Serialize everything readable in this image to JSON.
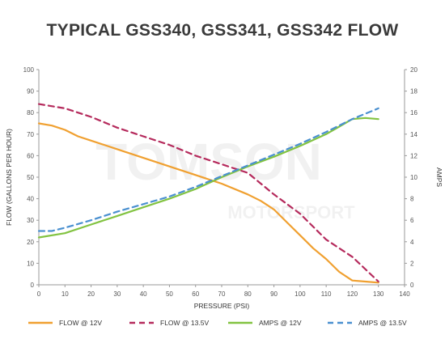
{
  "chart_data": {
    "type": "line",
    "title": "TYPICAL GSS340, GSS341, GSS342 FLOW",
    "xlabel": "PRESSURE (PSI)",
    "ylabel_left": "FLOW (GALLONS PER HOUR)",
    "ylabel_right": "AMPS",
    "xlim": [
      0,
      140
    ],
    "ylim_left": [
      0,
      100
    ],
    "ylim_right": [
      0,
      20
    ],
    "x_ticks": [
      0,
      10,
      20,
      30,
      40,
      50,
      60,
      70,
      80,
      90,
      100,
      110,
      120,
      130,
      140
    ],
    "y_left_ticks": [
      0,
      10,
      20,
      30,
      40,
      50,
      60,
      70,
      80,
      90,
      100
    ],
    "y_right_ticks": [
      0,
      2,
      4,
      6,
      8,
      10,
      12,
      14,
      16,
      18,
      20
    ],
    "watermark": [
      "TOMSON",
      "MOTORSPORT"
    ],
    "series": [
      {
        "name": "FLOW @ 12V",
        "axis": "left",
        "color": "#f0a030",
        "dash": false,
        "x": [
          0,
          5,
          10,
          15,
          20,
          30,
          40,
          50,
          60,
          70,
          80,
          85,
          90,
          95,
          100,
          105,
          110,
          115,
          120,
          125,
          130
        ],
        "y": [
          75,
          74,
          72,
          69,
          67,
          63,
          59,
          55,
          51,
          47,
          42,
          39,
          35,
          29,
          23,
          17,
          12,
          6,
          2,
          1.5,
          1
        ]
      },
      {
        "name": "FLOW @ 13.5V",
        "axis": "left",
        "color": "#b52a5c",
        "dash": true,
        "x": [
          0,
          10,
          20,
          30,
          40,
          50,
          60,
          70,
          80,
          90,
          100,
          110,
          120,
          130
        ],
        "y": [
          84,
          82,
          78,
          73,
          69,
          65,
          60,
          56,
          52,
          42,
          33,
          21,
          13,
          1.5
        ]
      },
      {
        "name": "AMPS @ 12V",
        "axis": "right",
        "color": "#82c341",
        "dash": false,
        "x": [
          0,
          10,
          20,
          30,
          40,
          50,
          60,
          70,
          80,
          90,
          100,
          110,
          115,
          120,
          125,
          130
        ],
        "y": [
          4.4,
          4.8,
          5.6,
          6.4,
          7.2,
          8.0,
          8.9,
          10.0,
          11.0,
          11.9,
          12.9,
          14.0,
          14.7,
          15.4,
          15.5,
          15.4
        ]
      },
      {
        "name": "AMPS @ 13.5V",
        "axis": "right",
        "color": "#4a90d0",
        "dash": true,
        "x": [
          0,
          5,
          10,
          20,
          30,
          40,
          50,
          60,
          70,
          80,
          90,
          100,
          110,
          120,
          130
        ],
        "y": [
          5.0,
          5.0,
          5.3,
          6.0,
          6.8,
          7.5,
          8.2,
          9.1,
          10.1,
          11.1,
          12.1,
          13.1,
          14.2,
          15.4,
          16.4
        ]
      }
    ],
    "gridlines": false,
    "legend_position": "bottom"
  }
}
